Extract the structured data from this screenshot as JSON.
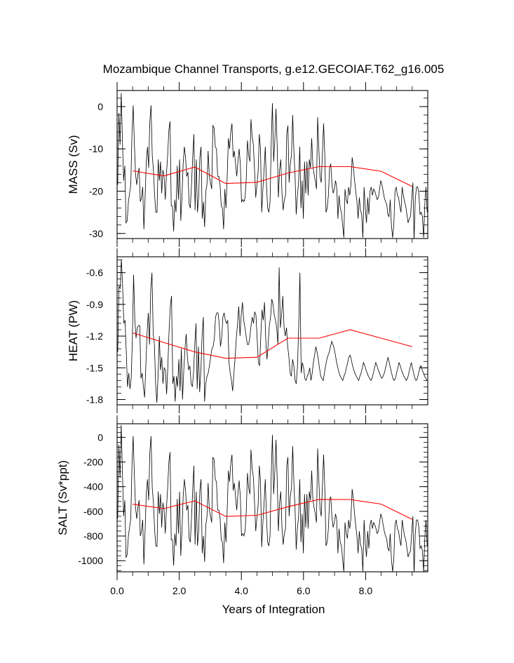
{
  "chart_data": {
    "type": "line",
    "title": "Mozambique Channel Transports, g.e12.GECOIAF.T62_g16.005",
    "xlabel": "Years of Integration",
    "xlim": [
      0,
      10
    ],
    "xticks": [
      0,
      2,
      4,
      6,
      8
    ],
    "xtick_labels": [
      "0.0",
      "2.0",
      "4.0",
      "6.0",
      "8.0"
    ],
    "colors": {
      "monthly": "#000000",
      "annual": "#ff0000"
    },
    "panels": [
      {
        "ylabel": "MASS (Sv)",
        "ylim": [
          -31.2,
          3.8
        ],
        "yticks": [
          0,
          -10,
          -20,
          -30
        ],
        "ytick_labels": [
          "0",
          "-10",
          "-20",
          "-30"
        ],
        "monthly": [
          -18.5,
          -1.5,
          -9.0,
          3.2,
          -8.0,
          -17.5,
          -14.0,
          -27.5,
          -27.0,
          -22.5,
          -20.5,
          -18.5,
          -6.5,
          0.3,
          -8.5,
          -16.0,
          -18.5,
          -16.0,
          -14.5,
          -22.5,
          -21.5,
          -19.0,
          -29.0,
          -21.5,
          -13.0,
          -9.5,
          -14.5,
          -3.5,
          0.3,
          -11.5,
          -15.0,
          -21.0,
          -25.0,
          -25.0,
          -12.5,
          -17.5,
          -13.0,
          -20.5,
          -15.0,
          -16.5,
          -22.0,
          -16.0,
          -11.5,
          -5.5,
          -3.5,
          -23.5,
          -23.5,
          -29.5,
          -22.0,
          -25.0,
          -14.0,
          -22.0,
          -12.5,
          -27.0,
          -21.5,
          -13.5,
          -9.5,
          -12.0,
          -16.5,
          -15.5,
          -23.0,
          -24.0,
          -18.5,
          -12.0,
          -6.5,
          -24.5,
          -12.5,
          -25.0,
          -21.5,
          -12.0,
          -9.5,
          -26.5,
          -22.5,
          -28.5,
          -20.0,
          -18.5,
          -10.5,
          -16.5,
          -18.0,
          -19.5,
          -4.5,
          -5.0,
          -9.5,
          -10.0,
          -16.5,
          -16.5,
          -18.5,
          -23.5,
          -24.0,
          -29.0,
          -19.5,
          -24.0,
          -16.5,
          -7.5,
          -10.0,
          -6.0,
          -4.0,
          -12.0,
          -10.5,
          -13.5,
          -16.5,
          -13.0,
          -10.0,
          -13.5,
          -22.5,
          -22.0,
          -22.5,
          -21.5,
          -17.0,
          -8.0,
          -11.5,
          -13.0,
          -3.0,
          -7.0,
          -9.0,
          -15.0,
          -21.5,
          -18.5,
          -15.5,
          -6.5,
          -10.0,
          -25.0,
          -19.5,
          -15.0,
          -9.5,
          -18.5,
          -24.0,
          -25.0,
          -22.5,
          -8.5,
          0.8,
          -13.0,
          -8.0,
          -0.5,
          -9.5,
          -21.5,
          -15.0,
          -12.5,
          -20.5,
          -24.5,
          -22.0,
          -21.0,
          -6.5,
          -4.5,
          -18.0,
          -13.5,
          -11.5,
          -2.0,
          -10.5,
          -16.0,
          -25.5,
          -21.0,
          -18.0,
          -9.5,
          -24.0,
          -17.5,
          -26.5,
          -13.0,
          -20.5,
          -13.0,
          -21.0,
          -12.5,
          -14.5,
          -7.5,
          -14.0,
          -16.0,
          -17.5,
          -19.5,
          -2.5,
          -10.0,
          -16.5,
          -18.0,
          -11.0,
          -4.0,
          -11.5,
          -25.0,
          -24.0,
          -21.0,
          -14.5,
          -13.5,
          -18.5,
          -20.5,
          -19.5,
          -17.5,
          -19.0,
          -26.5,
          -21.0,
          -24.0,
          -25.0,
          -28.0,
          -31.0,
          -19.5,
          -22.0,
          -23.0,
          -19.0,
          -21.0,
          -18.5,
          -12.0,
          -14.0,
          -17.5,
          -20.0,
          -22.5,
          -26.5,
          -21.5,
          -24.5,
          -25.5,
          -31.0,
          -19.0,
          -24.0,
          -27.5,
          -21.5,
          -25.5,
          -20.0,
          -19.0,
          -21.0,
          -19.5,
          -20.0,
          -21.0,
          -22.0,
          -21.5,
          -19.5,
          -17.5,
          -18.5,
          -20.0,
          -21.5,
          -22.5,
          -23.0,
          -25.5,
          -26.0,
          -22.0,
          -28.0,
          -31.0,
          -28.0,
          -20.0,
          -19.0,
          -21.0,
          -21.5,
          -23.5,
          -25.0,
          -19.0,
          -21.0,
          -22.5,
          -23.5,
          -25.5,
          -27.5,
          -26.5,
          -26.0,
          -22.0,
          -18.0,
          -31.5,
          -22.0,
          -19.0,
          -19.0,
          -20.5,
          -25.5,
          -25.0,
          -26.0,
          -31.0,
          -23.0,
          -19.0,
          -25.0
        ],
        "annual": [
          -15.2,
          -16.4,
          -14.3,
          -18.2,
          -17.9,
          -15.7,
          -14.2,
          -14.2,
          -15.3,
          -18.9
        ]
      },
      {
        "ylabel": "HEAT (PW)",
        "ylim": [
          -1.85,
          -0.45
        ],
        "yticks": [
          -0.6,
          -0.9,
          -1.2,
          -1.5,
          -1.8
        ],
        "ytick_labels": [
          "-0.6",
          "-0.9",
          "-1.2",
          "-1.5",
          "-1.8"
        ],
        "monthly": [
          -1.35,
          -0.73,
          -0.75,
          -0.47,
          -0.72,
          -1.08,
          -1.05,
          -1.35,
          -1.68,
          -1.55,
          -1.7,
          -1.6,
          -1.22,
          -0.62,
          -1.05,
          -1.22,
          -1.12,
          -1.1,
          -1.1,
          -1.6,
          -1.55,
          -1.68,
          -1.78,
          -1.48,
          -1.18,
          -0.98,
          -1.28,
          -0.76,
          -0.6,
          -1.18,
          -1.28,
          -1.65,
          -1.83,
          -1.58,
          -1.2,
          -1.52,
          -1.4,
          -1.65,
          -1.5,
          -1.52,
          -1.75,
          -1.48,
          -1.15,
          -0.92,
          -0.82,
          -1.65,
          -1.58,
          -1.82,
          -1.58,
          -1.68,
          -1.42,
          -1.72,
          -1.32,
          -1.8,
          -1.52,
          -1.32,
          -1.18,
          -1.4,
          -1.52,
          -1.48,
          -1.65,
          -1.68,
          -1.55,
          -1.28,
          -1.08,
          -1.7,
          -1.3,
          -1.73,
          -1.52,
          -1.2,
          -1.02,
          -1.82,
          -1.65,
          -1.58,
          -1.55,
          -1.48,
          -1.4,
          -1.32,
          -1.3,
          -1.22,
          -1.02,
          -0.98,
          -0.98,
          -1.08,
          -1.3,
          -1.22,
          -1.02,
          -0.98,
          -1.05,
          -1.08,
          -1.05,
          -1.45,
          -1.55,
          -1.62,
          -1.72,
          -1.55,
          -1.4,
          -1.22,
          -1.08,
          -0.92,
          -1.2,
          -1.0,
          -0.88,
          -1.05,
          -1.12,
          -1.2,
          -1.28,
          -1.28,
          -1.22,
          -1.1,
          -1.02,
          -1.08,
          -0.97,
          -1.0,
          -1.22,
          -1.45,
          -1.48,
          -1.2,
          -0.95,
          -1.05,
          -0.88,
          -1.22,
          -1.42,
          -1.28,
          -1.1,
          -1.02,
          -0.85,
          -0.9,
          -1.0,
          -1.05,
          -1.12,
          -1.28,
          -0.55,
          -1.12,
          -1.0,
          -0.82,
          -1.12,
          -1.2,
          -1.12,
          -1.3,
          -1.4,
          -1.55,
          -1.58,
          -1.42,
          -1.48,
          -1.62,
          -1.65,
          -1.48,
          -1.1,
          -0.6,
          -1.55,
          -1.45,
          -1.5,
          -1.6,
          -1.62,
          -1.58,
          -1.55,
          -1.5,
          -1.62,
          -1.55,
          -1.45,
          -1.38,
          -1.3,
          -1.35,
          -1.42,
          -1.5,
          -1.58,
          -1.6,
          -1.62,
          -1.55,
          -1.48,
          -1.42,
          -1.38,
          -1.35,
          -1.3,
          -1.25,
          -1.28,
          -1.32,
          -1.38,
          -1.45,
          -1.5,
          -1.55,
          -1.58,
          -1.6,
          -1.62,
          -1.58,
          -1.55,
          -1.5,
          -1.45,
          -1.4,
          -1.38,
          -1.42,
          -1.48,
          -1.52,
          -1.55,
          -1.58,
          -1.6,
          -1.62,
          -1.58,
          -1.55,
          -1.5,
          -1.45,
          -1.48,
          -1.52,
          -1.55,
          -1.58,
          -1.6,
          -1.62,
          -1.6,
          -1.55,
          -1.5,
          -1.45,
          -1.48,
          -1.52,
          -1.55,
          -1.58,
          -1.6,
          -1.58,
          -1.55,
          -1.5,
          -1.45,
          -1.4,
          -1.45,
          -1.5,
          -1.55,
          -1.6,
          -1.62,
          -1.6,
          -1.55,
          -1.5,
          -1.45,
          -1.48,
          -1.52,
          -1.55,
          -1.58,
          -1.6,
          -1.62,
          -1.6,
          -1.55,
          -1.5,
          -1.45,
          -1.5,
          -1.55,
          -1.6,
          -1.62,
          -1.6,
          -1.55,
          -1.5,
          -1.48,
          -1.52,
          -1.55,
          -1.58,
          -1.6,
          -1.62
        ],
        "annual": [
          -1.17,
          -1.26,
          -1.35,
          -1.41,
          -1.4,
          -1.22,
          -1.22,
          -1.14,
          -1.22,
          -1.3
        ]
      },
      {
        "ylabel": "SALT (Sv*ppt)",
        "ylim": [
          -1090,
          110
        ],
        "yticks": [
          0,
          -200,
          -400,
          -600,
          -800,
          -1000
        ],
        "ytick_labels": [
          "0",
          "-200",
          "-400",
          "-600",
          "-800",
          "-1000"
        ],
        "monthly": [
          -660,
          -60,
          -330,
          100,
          -290,
          -640,
          -510,
          -975,
          -950,
          -800,
          -730,
          -660,
          -230,
          10,
          -300,
          -570,
          -660,
          -570,
          -510,
          -800,
          -760,
          -670,
          -1030,
          -760,
          -460,
          -340,
          -510,
          -120,
          10,
          -410,
          -530,
          -750,
          -880,
          -885,
          -440,
          -620,
          -460,
          -730,
          -530,
          -590,
          -780,
          -570,
          -410,
          -200,
          -120,
          -830,
          -830,
          -1040,
          -780,
          -880,
          -500,
          -780,
          -440,
          -960,
          -760,
          -480,
          -340,
          -430,
          -590,
          -550,
          -820,
          -850,
          -650,
          -430,
          -230,
          -870,
          -440,
          -880,
          -760,
          -430,
          -340,
          -940,
          -800,
          -1010,
          -710,
          -650,
          -370,
          -590,
          -640,
          -690,
          -160,
          -180,
          -340,
          -360,
          -590,
          -590,
          -650,
          -830,
          -850,
          -1020,
          -690,
          -850,
          -590,
          -270,
          -360,
          -210,
          -140,
          -430,
          -370,
          -480,
          -590,
          -460,
          -350,
          -480,
          -800,
          -780,
          -800,
          -760,
          -600,
          -290,
          -410,
          -460,
          -100,
          -250,
          -320,
          -530,
          -760,
          -650,
          -550,
          -230,
          -350,
          -890,
          -690,
          -530,
          -340,
          -650,
          -850,
          -880,
          -800,
          -300,
          20,
          -460,
          -280,
          -20,
          -340,
          -760,
          -530,
          -440,
          -730,
          -870,
          -780,
          -740,
          -230,
          -160,
          -640,
          -480,
          -410,
          -70,
          -370,
          -570,
          -910,
          -740,
          -640,
          -340,
          -850,
          -620,
          -940,
          -460,
          -730,
          -460,
          -740,
          -440,
          -510,
          -270,
          -500,
          -570,
          -620,
          -690,
          -90,
          -350,
          -580,
          -640,
          -390,
          -140,
          -410,
          -880,
          -850,
          -740,
          -510,
          -480,
          -650,
          -730,
          -690,
          -620,
          -670,
          -940,
          -740,
          -850,
          -880,
          -990,
          -1090,
          -690,
          -780,
          -820,
          -670,
          -740,
          -650,
          -420,
          -500,
          -620,
          -710,
          -800,
          -940,
          -760,
          -870,
          -900,
          -1090,
          -670,
          -850,
          -970,
          -760,
          -900,
          -710,
          -670,
          -740,
          -690,
          -710,
          -740,
          -780,
          -760,
          -690,
          -620,
          -650,
          -710,
          -760,
          -800,
          -820,
          -900,
          -920,
          -780,
          -990,
          -1090,
          -990,
          -710,
          -670,
          -740,
          -760,
          -830,
          -880,
          -670,
          -740,
          -800,
          -830,
          -900,
          -970,
          -940,
          -920,
          -780,
          -640,
          -1110,
          -780,
          -670,
          -670,
          -730,
          -900,
          -880,
          -920,
          -1090,
          -820,
          -670,
          -880
        ],
        "annual": [
          -542,
          -578,
          -515,
          -641,
          -632,
          -563,
          -503,
          -504,
          -541,
          -665
        ]
      }
    ]
  }
}
